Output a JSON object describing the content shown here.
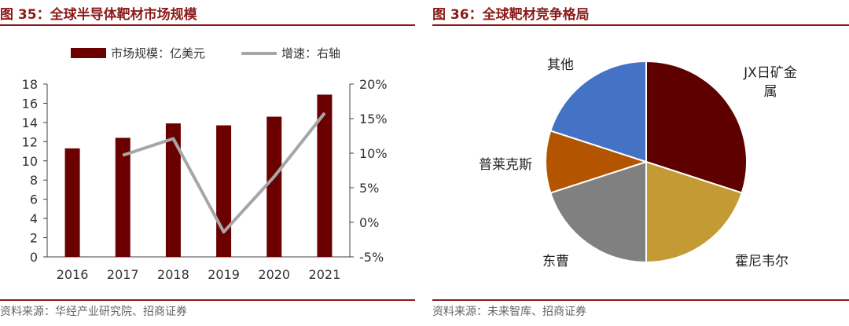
{
  "charts": {
    "left": {
      "title": "图 35：全球半导体靶材市场规模",
      "source": "资料来源：华经产业研究院、招商证券"
    },
    "right": {
      "title": "图 36：全球靶材竞争格局",
      "source": "资料来源：未来智库、招商证券"
    }
  },
  "colors": {
    "accent": "#8b1a1a",
    "bar": "#6b0000",
    "line": "#a6a6a6"
  },
  "chart_data": [
    {
      "type": "bar",
      "title": "",
      "categories": [
        "2016",
        "2017",
        "2018",
        "2019",
        "2020",
        "2021"
      ],
      "series": [
        {
          "name": "市场规模：亿美元",
          "type": "bar",
          "axis": "left",
          "values": [
            11.3,
            12.4,
            13.9,
            13.7,
            14.6,
            16.9
          ]
        },
        {
          "name": "增速：右轴",
          "type": "line",
          "axis": "right",
          "values": [
            null,
            9.7,
            12.1,
            -1.4,
            6.6,
            15.8
          ]
        }
      ],
      "ylim": [
        0,
        18
      ],
      "yticks": [
        "0",
        "2",
        "4",
        "6",
        "8",
        "10",
        "12",
        "14",
        "16",
        "18"
      ],
      "y2lim": [
        -5,
        20
      ],
      "y2ticks": [
        "-5%",
        "0%",
        "5%",
        "10%",
        "15%",
        "20%"
      ],
      "xlabel": "",
      "ylabel": "",
      "grid": false,
      "legend": "top"
    },
    {
      "type": "pie",
      "title": "",
      "labels": [
        "JX日矿金属",
        "霍尼韦尔",
        "东曹",
        "普莱克斯",
        "其他"
      ],
      "values": [
        30,
        20,
        20,
        10,
        20
      ],
      "colors": [
        "#5e0000",
        "#c39a33",
        "#808080",
        "#b35400",
        "#4472c4"
      ],
      "legend": "none"
    }
  ]
}
